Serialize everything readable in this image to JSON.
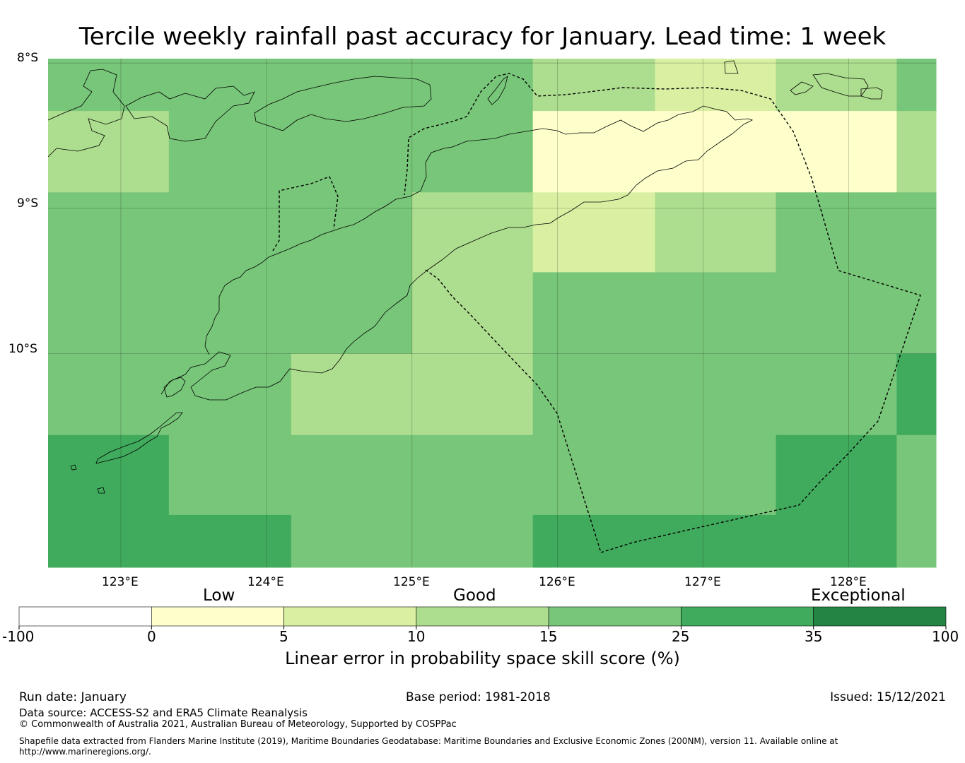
{
  "title": "Tercile weekly rainfall past accuracy for January. Lead time: 1 week",
  "lat_labels": [
    "8°S",
    "9°S",
    "10°S"
  ],
  "lon_labels": [
    "123°E",
    "124°E",
    "125°E",
    "126°E",
    "127°E",
    "128°E"
  ],
  "map_extent": {
    "lon_min": 122.5,
    "lon_max": 128.6,
    "lat_north": -7.97,
    "lat_south": -11.47
  },
  "colors": {
    "c0": "#ffffff",
    "c1": "#ffffcc",
    "c2": "#d9f0a3",
    "c3": "#addd8e",
    "c4": "#78c679",
    "c5": "#41ab5d",
    "c6": "#238443"
  },
  "grid": {
    "col_edges_lon": [
      122.5,
      123.33,
      124.17,
      125.0,
      125.83,
      126.67,
      127.5,
      128.33,
      128.6
    ],
    "row_edges_lat": [
      -7.97,
      -8.33,
      -8.89,
      -9.44,
      -10.0,
      -10.56,
      -11.11,
      -11.47
    ],
    "classes": [
      [
        4,
        4,
        4,
        4,
        3,
        2,
        3,
        4
      ],
      [
        3,
        4,
        4,
        4,
        1,
        1,
        1,
        3
      ],
      [
        4,
        4,
        4,
        3,
        2,
        3,
        4,
        4
      ],
      [
        4,
        4,
        4,
        3,
        4,
        4,
        4,
        4
      ],
      [
        4,
        4,
        3,
        3,
        4,
        4,
        4,
        5
      ],
      [
        5,
        4,
        4,
        4,
        4,
        4,
        5,
        4
      ],
      [
        5,
        5,
        4,
        4,
        5,
        5,
        5,
        4
      ]
    ]
  },
  "colorbar": {
    "band_labels": [
      "Low",
      "Good",
      "Exceptional"
    ],
    "ticks": [
      "-100",
      "0",
      "5",
      "10",
      "15",
      "25",
      "35",
      "100"
    ],
    "title": "Linear error in probability space skill score (%)"
  },
  "footer": {
    "run_date": "Run date: January",
    "base_period": "Base period: 1981-2018",
    "issued": "Issued: 15/12/2021",
    "data_source": "Data source: ACCESS-S2 and ERA5 Climate Reanalysis",
    "copyright": "© Commonwealth of Australia 2021, Australian Bureau of Meteorology, Supported by COSPPac",
    "shapefile_line1": "Shapefile data extracted from Flanders Marine Institute (2019), Maritime Boundaries Geodatabase: Maritime Boundaries and Exclusive Economic Zones (200NM), version 11. Available online at",
    "shapefile_line2": "http://www.marineregions.org/."
  }
}
